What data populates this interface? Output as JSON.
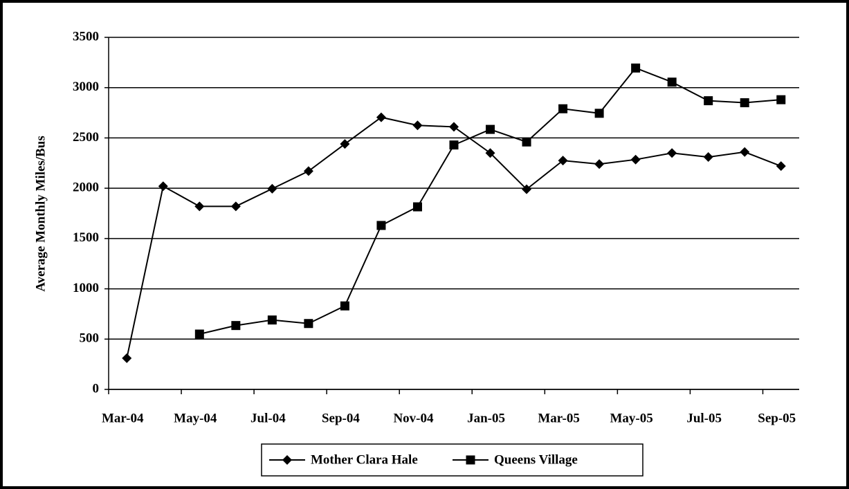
{
  "chart_data": {
    "type": "line",
    "y_label": "Average Monthly Miles/Bus",
    "categories": [
      "Mar-04",
      null,
      "May-04",
      null,
      "Jul-04",
      null,
      "Sep-04",
      null,
      "Nov-04",
      null,
      "Jan-05",
      null,
      "Mar-05",
      null,
      "May-05",
      null,
      "Jul-05",
      null,
      "Sep-05"
    ],
    "series": [
      {
        "name": "Mother Clara Hale",
        "color": "#000000",
        "marker": "diamond",
        "values": [
          310,
          2020,
          1820,
          1820,
          1995,
          2170,
          2440,
          2705,
          2625,
          2610,
          2350,
          1990,
          2275,
          2240,
          2285,
          2350,
          2310,
          2360,
          2220
        ]
      },
      {
        "name": "Queens Village",
        "color": "#000000",
        "marker": "square",
        "values": [
          null,
          null,
          550,
          635,
          690,
          655,
          830,
          1630,
          1815,
          2430,
          2585,
          2460,
          2790,
          2745,
          3195,
          3055,
          2870,
          2850,
          2880
        ]
      }
    ],
    "ylim": [
      0,
      3500
    ],
    "yticks": [
      0,
      500,
      1000,
      1500,
      2000,
      2500,
      3000,
      3500
    ],
    "grid": true,
    "legend": "bottom"
  }
}
